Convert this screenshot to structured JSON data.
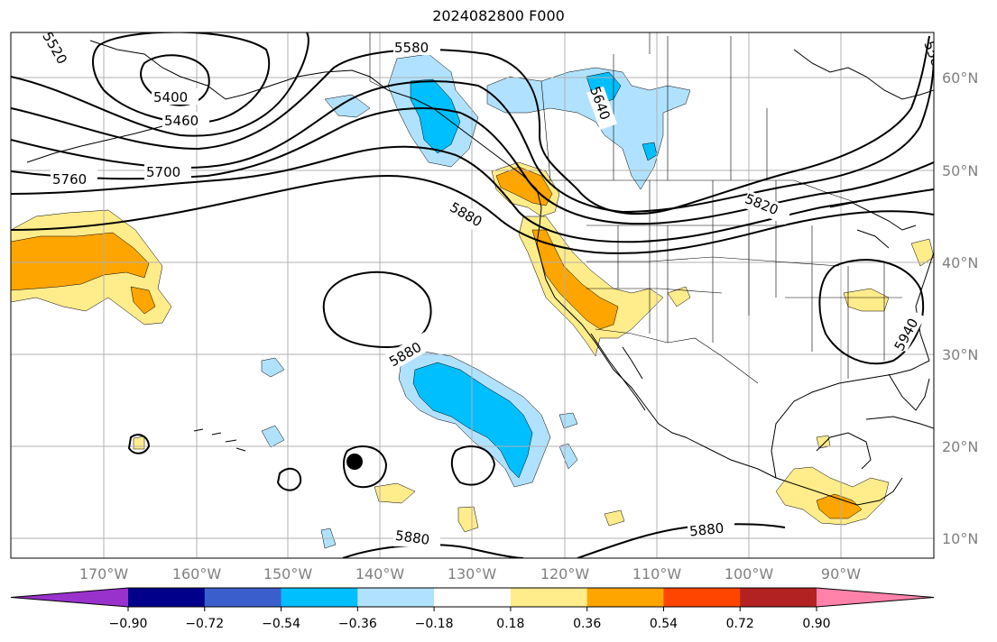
{
  "title": "2024082800 F000",
  "map": {
    "lat_labels": [
      "60°N",
      "50°N",
      "40°N",
      "30°N",
      "20°N",
      "10°N"
    ],
    "lon_labels": [
      "170°W",
      "160°W",
      "150°W",
      "140°W",
      "130°W",
      "120°W",
      "110°W",
      "100°W",
      "90°W"
    ],
    "contour_labels": [
      "5520",
      "5580",
      "5400",
      "5460",
      "5640",
      "5700",
      "5760",
      "5820",
      "5880",
      "5880",
      "5880",
      "5880",
      "5940",
      "5880",
      "5580"
    ]
  },
  "colorbar": {
    "tick_labels": [
      "−0.90",
      "−0.72",
      "−0.54",
      "−0.36",
      "−0.18",
      "0.18",
      "0.36",
      "0.54",
      "0.72",
      "0.90"
    ],
    "colors": [
      "#9932cc",
      "#00008b",
      "#3a5fcd",
      "#00bfff",
      "#b0e2ff",
      "#ffffff",
      "#ffec8b",
      "#ffa500",
      "#ff4500",
      "#b22222",
      "#ff82ab"
    ]
  },
  "chart_data": {
    "type": "heatmap",
    "title": "2024082800 F000",
    "xlabel": "",
    "ylabel": "",
    "x_ticks": [
      "170°W",
      "160°W",
      "150°W",
      "140°W",
      "130°W",
      "120°W",
      "110°W",
      "100°W",
      "90°W"
    ],
    "y_ticks": [
      "60°N",
      "50°N",
      "40°N",
      "30°N",
      "20°N",
      "10°N"
    ],
    "contour_levels": [
      5400,
      5460,
      5520,
      5580,
      5640,
      5700,
      5760,
      5820,
      5880,
      5940
    ],
    "colorbar_levels": [
      -0.9,
      -0.72,
      -0.54,
      -0.36,
      -0.18,
      0.18,
      0.36,
      0.54,
      0.72,
      0.9
    ]
  }
}
